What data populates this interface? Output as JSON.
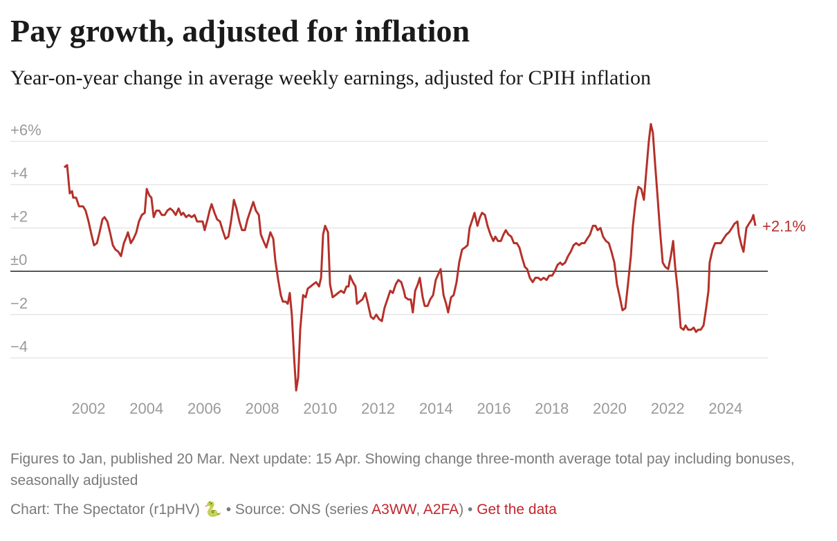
{
  "chart_data": {
    "type": "line",
    "title": "Pay growth, adjusted for inflation",
    "subtitle": "Year-on-year change in average weekly earnings, adjusted for CPIH inflation",
    "color": "#b5302a",
    "x": [
      2001.16,
      2001.26,
      2001.35,
      2001.43,
      2001.47,
      2001.57,
      2001.67,
      2001.81,
      2001.9,
      2002.0,
      2002.1,
      2002.19,
      2002.29,
      2002.38,
      2002.48,
      2002.55,
      2002.65,
      2002.74,
      2002.84,
      2002.93,
      2003.03,
      2003.12,
      2003.22,
      2003.31,
      2003.36,
      2003.46,
      2003.55,
      2003.65,
      2003.74,
      2003.84,
      2003.94,
      2004.01,
      2004.1,
      2004.17,
      2004.25,
      2004.34,
      2004.44,
      2004.53,
      2004.63,
      2004.72,
      2004.82,
      2004.91,
      2005.01,
      2005.11,
      2005.2,
      2005.27,
      2005.37,
      2005.46,
      2005.56,
      2005.66,
      2005.75,
      2005.85,
      2005.94,
      2006.01,
      2006.11,
      2006.18,
      2006.25,
      2006.35,
      2006.44,
      2006.54,
      2006.63,
      2006.73,
      2006.83,
      2006.92,
      2007.02,
      2007.11,
      2007.21,
      2007.3,
      2007.4,
      2007.49,
      2007.59,
      2007.69,
      2007.78,
      2007.88,
      2007.95,
      2008.04,
      2008.14,
      2008.24,
      2008.28,
      2008.38,
      2008.45,
      2008.55,
      2008.64,
      2008.71,
      2008.81,
      2008.88,
      2008.95,
      2009.02,
      2009.1,
      2009.17,
      2009.24,
      2009.31,
      2009.41,
      2009.5,
      2009.57,
      2009.67,
      2009.76,
      2009.86,
      2009.96,
      2010.03,
      2010.1,
      2010.17,
      2010.27,
      2010.34,
      2010.43,
      2010.53,
      2010.62,
      2010.72,
      2010.82,
      2010.91,
      2010.98,
      2011.03,
      2011.13,
      2011.22,
      2011.27,
      2011.36,
      2011.46,
      2011.56,
      2011.65,
      2011.75,
      2011.84,
      2011.94,
      2012.03,
      2012.13,
      2012.22,
      2012.32,
      2012.42,
      2012.51,
      2012.61,
      2012.7,
      2012.8,
      2012.89,
      2012.94,
      2013.04,
      2013.13,
      2013.2,
      2013.28,
      2013.37,
      2013.44,
      2013.54,
      2013.61,
      2013.71,
      2013.8,
      2013.9,
      2013.99,
      2014.09,
      2014.16,
      2014.26,
      2014.35,
      2014.42,
      2014.52,
      2014.61,
      2014.71,
      2014.8,
      2014.9,
      2015.0,
      2015.09,
      2015.16,
      2015.26,
      2015.33,
      2015.43,
      2015.52,
      2015.59,
      2015.69,
      2015.78,
      2015.88,
      2015.98,
      2016.05,
      2016.14,
      2016.24,
      2016.33,
      2016.41,
      2016.5,
      2016.6,
      2016.69,
      2016.79,
      2016.88,
      2016.98,
      2017.07,
      2017.15,
      2017.24,
      2017.34,
      2017.43,
      2017.53,
      2017.62,
      2017.72,
      2017.82,
      2017.91,
      2018.01,
      2018.1,
      2018.2,
      2018.29,
      2018.36,
      2018.46,
      2018.56,
      2018.65,
      2018.75,
      2018.84,
      2018.94,
      2019.03,
      2019.13,
      2019.22,
      2019.32,
      2019.42,
      2019.51,
      2019.58,
      2019.68,
      2019.77,
      2019.87,
      2019.97,
      2020.06,
      2020.16,
      2020.25,
      2020.35,
      2020.44,
      2020.54,
      2020.63,
      2020.73,
      2020.8,
      2020.9,
      2020.99,
      2021.09,
      2021.18,
      2021.28,
      2021.35,
      2021.42,
      2021.49,
      2021.57,
      2021.66,
      2021.73,
      2021.83,
      2021.92,
      2022.02,
      2022.11,
      2022.19,
      2022.26,
      2022.35,
      2022.45,
      2022.55,
      2022.62,
      2022.71,
      2022.81,
      2022.9,
      2022.98,
      2023.05,
      2023.14,
      2023.24,
      2023.33,
      2023.41,
      2023.45,
      2023.55,
      2023.64,
      2023.74,
      2023.84,
      2023.93,
      2024.03,
      2024.12,
      2024.22,
      2024.31,
      2024.41,
      2024.46,
      2024.55,
      2024.62,
      2024.72,
      2024.81,
      2024.91,
      2024.96,
      2025.03
    ],
    "values": [
      4.8,
      4.9,
      3.6,
      3.7,
      3.4,
      3.4,
      3.0,
      3.0,
      2.8,
      2.3,
      1.7,
      1.2,
      1.3,
      1.8,
      2.4,
      2.5,
      2.3,
      1.8,
      1.2,
      1.0,
      0.9,
      0.7,
      1.3,
      1.6,
      1.8,
      1.3,
      1.5,
      1.8,
      2.3,
      2.6,
      2.7,
      3.8,
      3.5,
      3.4,
      2.5,
      2.8,
      2.8,
      2.6,
      2.6,
      2.8,
      2.9,
      2.8,
      2.6,
      2.9,
      2.6,
      2.7,
      2.5,
      2.6,
      2.5,
      2.6,
      2.3,
      2.3,
      2.3,
      1.9,
      2.4,
      2.8,
      3.1,
      2.7,
      2.4,
      2.3,
      1.9,
      1.5,
      1.6,
      2.3,
      3.3,
      2.9,
      2.3,
      1.9,
      1.9,
      2.4,
      2.8,
      3.2,
      2.8,
      2.6,
      1.7,
      1.4,
      1.1,
      1.6,
      1.8,
      1.5,
      0.5,
      -0.4,
      -1.1,
      -1.4,
      -1.4,
      -1.5,
      -1.0,
      -2.0,
      -4.0,
      -5.5,
      -4.9,
      -2.7,
      -1.1,
      -1.2,
      -0.8,
      -0.7,
      -0.6,
      -0.5,
      -0.7,
      -0.3,
      1.7,
      2.1,
      1.8,
      -0.6,
      -1.2,
      -1.1,
      -1.0,
      -0.9,
      -1.0,
      -0.7,
      -0.7,
      -0.2,
      -0.5,
      -0.7,
      -1.5,
      -1.4,
      -1.3,
      -1.0,
      -1.5,
      -2.1,
      -2.2,
      -2.0,
      -2.2,
      -2.3,
      -1.7,
      -1.3,
      -0.9,
      -1.0,
      -0.6,
      -0.4,
      -0.5,
      -0.9,
      -1.2,
      -1.3,
      -1.3,
      -1.9,
      -0.9,
      -0.6,
      -0.3,
      -1.2,
      -1.6,
      -1.6,
      -1.3,
      -1.1,
      -0.4,
      -0.1,
      0.1,
      -1.1,
      -1.5,
      -1.9,
      -1.2,
      -1.1,
      -0.5,
      0.4,
      1.0,
      1.1,
      1.2,
      2.0,
      2.4,
      2.7,
      2.1,
      2.5,
      2.7,
      2.6,
      2.1,
      1.7,
      1.4,
      1.6,
      1.4,
      1.4,
      1.7,
      1.9,
      1.7,
      1.6,
      1.3,
      1.3,
      1.1,
      0.6,
      0.2,
      0.1,
      -0.3,
      -0.5,
      -0.3,
      -0.3,
      -0.4,
      -0.3,
      -0.4,
      -0.2,
      -0.2,
      0.0,
      0.3,
      0.4,
      0.3,
      0.4,
      0.7,
      0.9,
      1.2,
      1.3,
      1.2,
      1.3,
      1.3,
      1.5,
      1.7,
      2.1,
      2.1,
      1.9,
      2.0,
      1.6,
      1.4,
      1.3,
      0.9,
      0.4,
      -0.6,
      -1.2,
      -1.8,
      -1.7,
      -0.6,
      0.7,
      2.1,
      3.3,
      3.9,
      3.8,
      3.3,
      4.9,
      6.0,
      6.8,
      6.4,
      4.9,
      3.3,
      2.0,
      0.4,
      0.2,
      0.1,
      0.7,
      1.4,
      0.2,
      -0.9,
      -2.6,
      -2.7,
      -2.5,
      -2.7,
      -2.7,
      -2.6,
      -2.8,
      -2.7,
      -2.7,
      -2.5,
      -1.7,
      -0.9,
      0.4,
      1.0,
      1.3,
      1.3,
      1.3,
      1.5,
      1.7,
      1.8,
      2.0,
      2.2,
      2.3,
      1.7,
      1.2,
      0.9,
      2.0,
      2.2,
      2.4,
      2.6,
      2.1
    ],
    "end_label": "+2.1%",
    "xlim": [
      1999.3,
      2025.46
    ],
    "xticks": [
      2002,
      2004,
      2006,
      2008,
      2010,
      2012,
      2014,
      2016,
      2018,
      2020,
      2022,
      2024
    ],
    "ylim": [
      -6,
      7
    ],
    "yticks": [
      {
        "value": 6,
        "label": "+6%"
      },
      {
        "value": 4,
        "label": "+4"
      },
      {
        "value": 2,
        "label": "+2"
      },
      {
        "value": 0,
        "label": "±0"
      },
      {
        "value": -2,
        "label": "−2"
      },
      {
        "value": -4,
        "label": "−4"
      }
    ],
    "grid": true
  },
  "footer": {
    "note": "Figures to Jan, published 20 Mar. Next update: 15 Apr. Showing change three-month average total pay including bonuses, seasonally adjusted",
    "credit": "Chart: The Spectator (r1pHV) 🐍 • Source: ONS (series ",
    "link1": "A3WW",
    "sep": ", ",
    "link2": "A2FA",
    "close": ") • ",
    "data_link": "Get the data"
  }
}
